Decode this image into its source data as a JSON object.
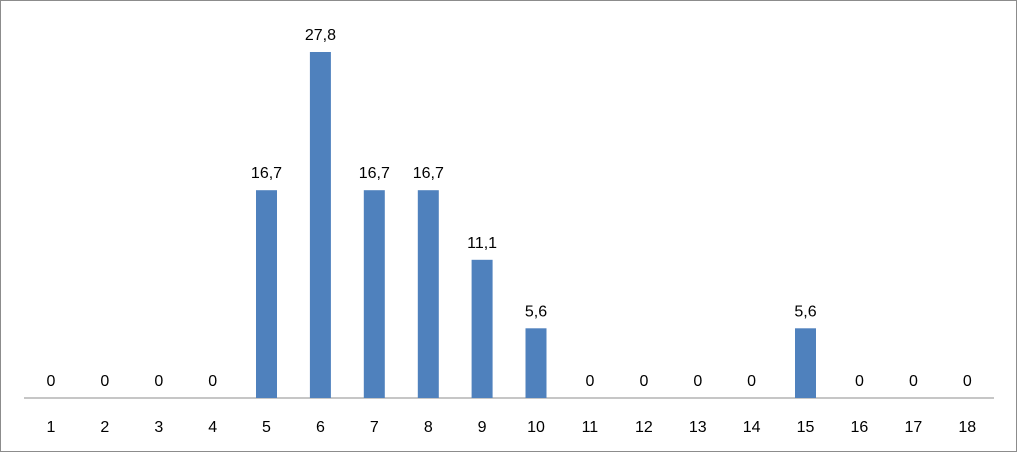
{
  "chart_data": {
    "type": "bar",
    "categories": [
      "1",
      "2",
      "3",
      "4",
      "5",
      "6",
      "7",
      "8",
      "9",
      "10",
      "11",
      "12",
      "13",
      "14",
      "15",
      "16",
      "17",
      "18"
    ],
    "values": [
      0,
      0,
      0,
      0,
      16.7,
      27.8,
      16.7,
      16.7,
      11.1,
      5.6,
      0,
      0,
      0,
      0,
      5.6,
      0,
      0,
      0
    ],
    "value_labels": [
      "0",
      "0",
      "0",
      "0",
      "16,7",
      "27,8",
      "16,7",
      "16,7",
      "11,1",
      "5,6",
      "0",
      "0",
      "0",
      "0",
      "5,6",
      "0",
      "0",
      "0"
    ],
    "ylim": [
      0,
      27.8
    ],
    "grid": false,
    "legend": "none",
    "bar_color": "#4f81bd",
    "axis_color": "#8c8c8c"
  }
}
